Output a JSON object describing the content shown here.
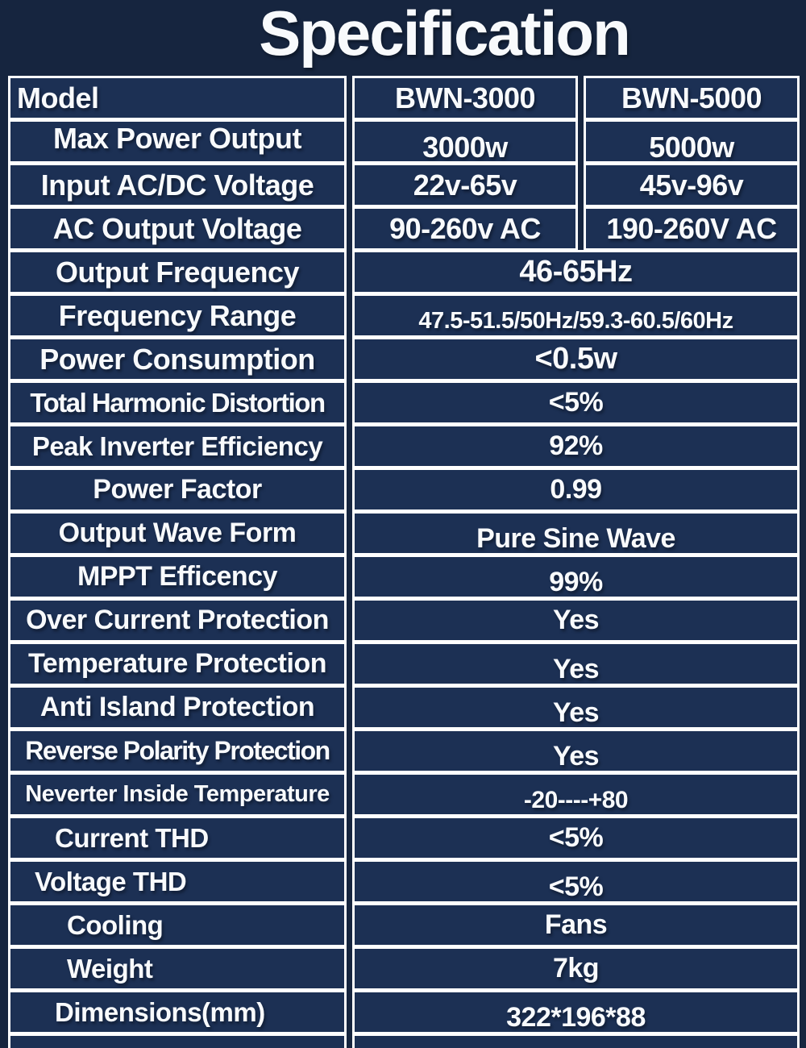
{
  "title": "Specification",
  "colors": {
    "page_background": "#16253f",
    "cell_background": "#1c3054",
    "border": "#ffffff",
    "text": "#f8fafc"
  },
  "table": {
    "rows": [
      {
        "label": "Model",
        "values": [
          "BWN-3000",
          "BWN-5000"
        ]
      },
      {
        "label": "Max Power Output",
        "values": [
          "3000w",
          "5000w"
        ]
      },
      {
        "label": "Input AC/DC Voltage",
        "values": [
          "22v-65v",
          "45v-96v"
        ]
      },
      {
        "label": "AC Output Voltage",
        "values": [
          "90-260v AC",
          "190-260V AC"
        ]
      },
      {
        "label": "Output Frequency",
        "value": "46-65Hz"
      },
      {
        "label": "Frequency Range",
        "value": "47.5-51.5/50Hz/59.3-60.5/60Hz"
      },
      {
        "label": "Power Consumption",
        "value": "<0.5w"
      },
      {
        "label": "Total Harmonic Distortion",
        "value": "<5%"
      },
      {
        "label": "Peak Inverter Efficiency",
        "value": "92%"
      },
      {
        "label": "Power Factor",
        "value": "0.99"
      },
      {
        "label": "Output Wave Form",
        "value": "Pure Sine Wave"
      },
      {
        "label": "MPPT Efficency",
        "value": "99%"
      },
      {
        "label": "Over Current Protection",
        "value": "Yes"
      },
      {
        "label": "Temperature Protection",
        "value": "Yes"
      },
      {
        "label": "Anti Island Protection",
        "value": "Yes"
      },
      {
        "label": "Reverse Polarity Protection",
        "value": "Yes"
      },
      {
        "label": "Neverter Inside Temperature",
        "value": "-20----+80"
      },
      {
        "label": "Current THD",
        "value": "<5%"
      },
      {
        "label": "Voltage THD",
        "value": "<5%"
      },
      {
        "label": "Cooling",
        "value": "Fans"
      },
      {
        "label": "Weight",
        "value": "7kg"
      },
      {
        "label": "Dimensions(mm)",
        "value": "322*196*88"
      },
      {
        "label": "",
        "value": ""
      }
    ]
  }
}
